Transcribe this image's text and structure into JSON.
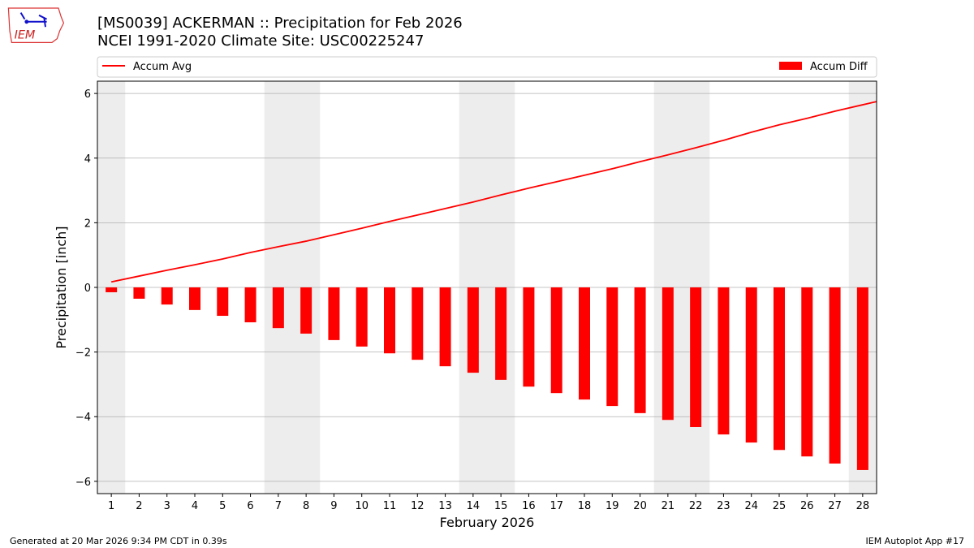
{
  "title_line1": "[MS0039] ACKERMAN :: Precipitation for Feb 2026",
  "title_line2": "NCEI 1991-2020 Climate Site: USC00225247",
  "logo_text": "IEM",
  "footer_left": "Generated at 20 Mar 2026 9:34 PM CDT in 0.39s",
  "footer_right": "IEM Autoplot App #17",
  "chart_data": {
    "type": "bar",
    "xlabel": "February 2026",
    "ylabel": "Precipitation [inch]",
    "xlim": [
      0.5,
      28.5
    ],
    "ylim": [
      -6.38,
      6.38
    ],
    "yticks": [
      -6,
      -4,
      -2,
      0,
      2,
      4,
      6
    ],
    "grid": "y",
    "legend": "top, above plot",
    "weekend_shading": [
      [
        0.5,
        1.5
      ],
      [
        6.5,
        8.5
      ],
      [
        13.5,
        15.5
      ],
      [
        20.5,
        22.5
      ],
      [
        27.5,
        28.5
      ]
    ],
    "categories": [
      1,
      2,
      3,
      4,
      5,
      6,
      7,
      8,
      9,
      10,
      11,
      12,
      13,
      14,
      15,
      16,
      17,
      18,
      19,
      20,
      21,
      22,
      23,
      24,
      25,
      26,
      27,
      28
    ],
    "series": [
      {
        "name": "Accum Avg",
        "kind": "line",
        "color": "#ff0000",
        "values": [
          0.17,
          0.35,
          0.53,
          0.7,
          0.88,
          1.08,
          1.26,
          1.43,
          1.63,
          1.83,
          2.04,
          2.24,
          2.44,
          2.64,
          2.86,
          3.07,
          3.27,
          3.47,
          3.67,
          3.89,
          4.1,
          4.32,
          4.55,
          4.8,
          5.03,
          5.23,
          5.45,
          5.65
        ]
      },
      {
        "name": "Accum Diff",
        "kind": "bar",
        "color": "#ff0000",
        "values": [
          -0.15,
          -0.35,
          -0.53,
          -0.7,
          -0.88,
          -1.08,
          -1.26,
          -1.43,
          -1.63,
          -1.83,
          -2.04,
          -2.24,
          -2.44,
          -2.64,
          -2.86,
          -3.07,
          -3.27,
          -3.47,
          -3.67,
          -3.89,
          -4.1,
          -4.32,
          -4.55,
          -4.8,
          -5.03,
          -5.23,
          -5.45,
          -5.65
        ]
      }
    ]
  }
}
